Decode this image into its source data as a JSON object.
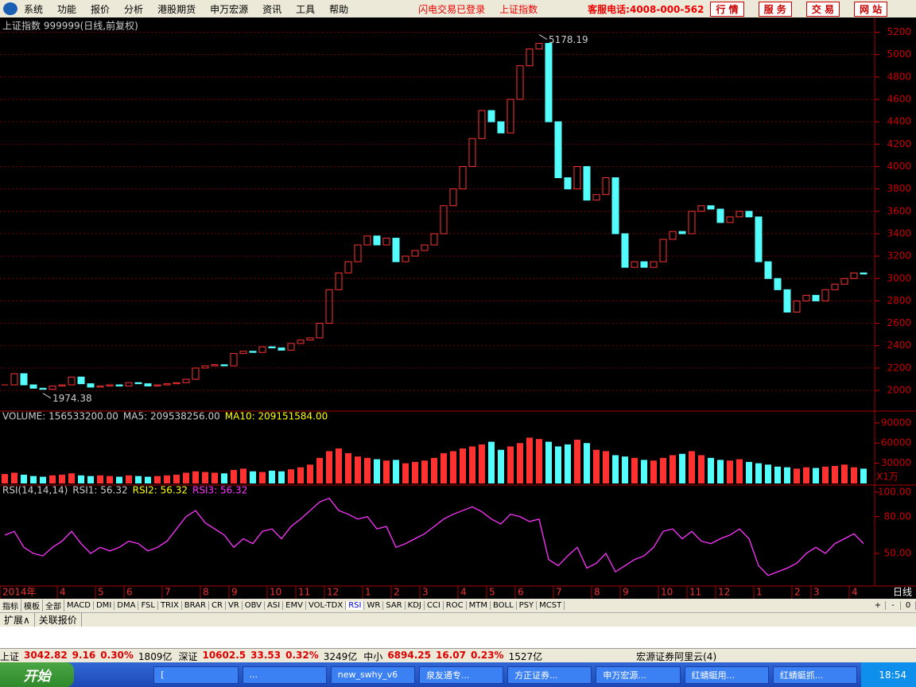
{
  "menu": {
    "items": [
      "系统",
      "功能",
      "报价",
      "分析",
      "港股期货",
      "申万宏源",
      "资讯",
      "工具",
      "帮助"
    ],
    "notice": [
      "闪电交易已登录",
      "上证指数"
    ],
    "hotline": "客服电话:4008-000-562",
    "buttons": [
      "行 情",
      "服 务",
      "交 易",
      "网 站"
    ]
  },
  "period": "日线",
  "chart_data": [
    {
      "type": "candlestick",
      "title": "上证指数 999999(日线,前复权)",
      "ylim": [
        1830,
        5310
      ],
      "yticks": [
        2000,
        2200,
        2400,
        2600,
        2800,
        3000,
        3200,
        3400,
        3600,
        3800,
        4000,
        4200,
        4400,
        4600,
        4800,
        5000,
        5200
      ],
      "grid": true,
      "max_label": 5178.19,
      "min_label": 1974.38,
      "categories": [
        "2014年",
        null,
        null,
        null,
        null,
        null,
        "4",
        null,
        null,
        null,
        "5",
        null,
        null,
        "6",
        null,
        null,
        null,
        "7",
        null,
        null,
        null,
        "8",
        null,
        null,
        "9",
        null,
        null,
        null,
        "10",
        null,
        null,
        "11",
        null,
        null,
        "12",
        null,
        null,
        null,
        "1",
        null,
        null,
        "2",
        null,
        null,
        "3",
        null,
        null,
        null,
        "4",
        null,
        null,
        "5",
        null,
        null,
        "6",
        null,
        null,
        null,
        "7",
        null,
        null,
        null,
        "8",
        null,
        null,
        "9",
        null,
        null,
        null,
        "10",
        null,
        null,
        "11",
        null,
        null,
        "12",
        null,
        null,
        null,
        "1",
        null,
        null,
        null,
        "2",
        null,
        "3",
        null,
        null,
        null,
        "4",
        null
      ],
      "values": [
        2050,
        2150,
        2050,
        2020,
        2010,
        2040,
        2050,
        2120,
        2060,
        2030,
        2040,
        2050,
        2040,
        2070,
        2060,
        2040,
        2050,
        2060,
        2070,
        2100,
        2200,
        2220,
        2230,
        2220,
        2330,
        2350,
        2340,
        2390,
        2380,
        2360,
        2420,
        2450,
        2470,
        2600,
        2900,
        3050,
        3150,
        3300,
        3380,
        3300,
        3360,
        3150,
        3200,
        3250,
        3300,
        3400,
        3650,
        3800,
        4000,
        4250,
        4500,
        4400,
        4300,
        4600,
        4900,
        5050,
        5100,
        4400,
        3900,
        3800,
        4000,
        3700,
        3750,
        3900,
        3400,
        3100,
        3150,
        3100,
        3150,
        3350,
        3420,
        3400,
        3600,
        3650,
        3620,
        3500,
        3550,
        3600,
        3550,
        3150,
        3000,
        2900,
        2700,
        2800,
        2850,
        2800,
        2900,
        2950,
        3000,
        3050,
        3040
      ],
      "up_color": "#ff3232",
      "down_color": "#54fcfc"
    },
    {
      "type": "bar",
      "header": [
        "VOLUME: 156533200.00",
        "MA5: 209538256.00",
        "MA10: 209151584.00"
      ],
      "unit_label": "X1万",
      "ylim": [
        0,
        104000
      ],
      "yticks": [
        30000,
        60000,
        90000
      ],
      "values": [
        14000,
        16000,
        13000,
        11000,
        10000,
        12000,
        13000,
        15000,
        12000,
        11000,
        12000,
        11000,
        10000,
        12000,
        11000,
        10000,
        11000,
        12000,
        13000,
        16000,
        18000,
        17000,
        16000,
        15000,
        20000,
        22000,
        18000,
        17000,
        19000,
        18000,
        21000,
        24000,
        28000,
        38000,
        48000,
        52000,
        45000,
        40000,
        38000,
        36000,
        34000,
        35000,
        30000,
        32000,
        34000,
        38000,
        45000,
        48000,
        52000,
        55000,
        58000,
        62000,
        50000,
        55000,
        60000,
        68000,
        66000,
        62000,
        55000,
        58000,
        65000,
        60000,
        50000,
        48000,
        42000,
        40000,
        38000,
        35000,
        34000,
        38000,
        42000,
        44000,
        48000,
        42000,
        38000,
        35000,
        34000,
        36000,
        32000,
        30000,
        28000,
        25000,
        24000,
        22000,
        24000,
        23000,
        25000,
        26000,
        28000,
        24000,
        22000
      ]
    },
    {
      "type": "line",
      "header": [
        "RSI(14,14,14)",
        "RSI1: 56.32",
        "RSI2: 56.32",
        "RSI3: 56.32"
      ],
      "color": "#ff33ff",
      "ylim": [
        23.4,
        104.5
      ],
      "yticks": [
        {
          "value": 50,
          "label": "50.00"
        },
        {
          "value": 80,
          "label": "80.00"
        },
        {
          "value": 100,
          "label": "100.00"
        }
      ],
      "values": [
        65,
        68,
        55,
        50,
        48,
        55,
        60,
        68,
        58,
        50,
        55,
        52,
        55,
        60,
        58,
        52,
        55,
        60,
        70,
        80,
        85,
        75,
        70,
        65,
        55,
        62,
        58,
        68,
        70,
        62,
        72,
        78,
        85,
        92,
        95,
        85,
        82,
        78,
        80,
        70,
        72,
        55,
        58,
        62,
        66,
        72,
        78,
        82,
        85,
        88,
        84,
        78,
        74,
        82,
        80,
        76,
        78,
        45,
        40,
        48,
        55,
        38,
        42,
        50,
        35,
        40,
        45,
        48,
        55,
        68,
        70,
        62,
        68,
        60,
        58,
        62,
        65,
        70,
        62,
        40,
        32,
        35,
        38,
        42,
        50,
        55,
        50,
        58,
        62,
        66,
        58
      ]
    }
  ],
  "tabs": [
    "指标",
    "模板",
    "全部",
    "MACD",
    "DMI",
    "DMA",
    "FSL",
    "TRIX",
    "BRAR",
    "CR",
    "VR",
    "OBV",
    "ASI",
    "EMV",
    "VOL-TDX",
    "RSI",
    "WR",
    "SAR",
    "KDJ",
    "CCI",
    "ROC",
    "MTM",
    "BOLL",
    "PSY",
    "MCST"
  ],
  "tab_controls": [
    "+",
    "-",
    "0"
  ],
  "subtabs": [
    "扩展∧",
    "关联报价"
  ],
  "status": {
    "sh": [
      "上证",
      "3042.82",
      "9.16",
      "0.30%",
      "1809亿"
    ],
    "sz": [
      "深证",
      "10602.5",
      "33.53",
      "0.32%",
      "3249亿"
    ],
    "zx": [
      "中小",
      "6894.25",
      "16.07",
      "0.23%",
      "1527亿"
    ],
    "server": "宏源证券阿里云(4)"
  },
  "taskbar": {
    "start": "开始",
    "tasks": [
      "[",
      "...",
      "new_swhy_v6",
      "泉友通专...",
      "方正证券...",
      "申万宏源...",
      "红蜻蜓用...",
      "红蜻蜓抓..."
    ],
    "clock": "18:54"
  }
}
